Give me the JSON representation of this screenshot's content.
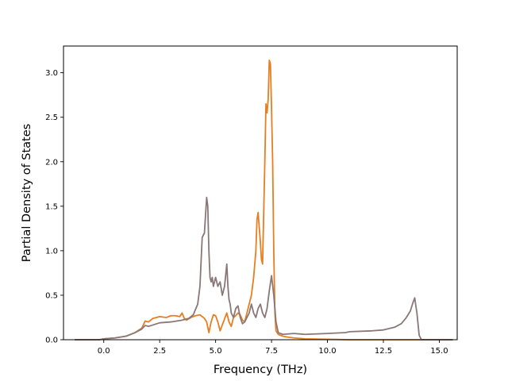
{
  "chart_data": {
    "type": "line",
    "xlabel": "Frequency (THz)",
    "ylabel": "Partial Density of States",
    "xlim": [
      -1.8,
      15.8
    ],
    "ylim": [
      0.0,
      3.3
    ],
    "xticks": [
      0.0,
      2.5,
      5.0,
      7.5,
      10.0,
      12.5,
      15.0
    ],
    "xtick_labels": [
      "0.0",
      "2.5",
      "5.0",
      "7.5",
      "10.0",
      "12.5",
      "15.0"
    ],
    "yticks": [
      0.0,
      0.5,
      1.0,
      1.5,
      2.0,
      2.5,
      3.0
    ],
    "ytick_labels": [
      "0.0",
      "0.5",
      "1.0",
      "1.5",
      "2.0",
      "2.5",
      "3.0"
    ],
    "grid": false,
    "series": [
      {
        "color": "#e67e22",
        "x": [
          -1.3,
          -0.2,
          0.0,
          0.5,
          1.0,
          1.4,
          1.7,
          1.85,
          2.0,
          2.2,
          2.5,
          2.8,
          3.0,
          3.2,
          3.4,
          3.5,
          3.6,
          3.7,
          3.9,
          4.1,
          4.3,
          4.5,
          4.6,
          4.7,
          4.8,
          4.9,
          5.0,
          5.1,
          5.2,
          5.35,
          5.5,
          5.6,
          5.7,
          5.8,
          5.9,
          6.0,
          6.1,
          6.2,
          6.3,
          6.4,
          6.5,
          6.6,
          6.7,
          6.8,
          6.85,
          6.9,
          7.0,
          7.05,
          7.1,
          7.2,
          7.25,
          7.3,
          7.35,
          7.4,
          7.45,
          7.5,
          7.55,
          7.6,
          7.65,
          7.7,
          7.8,
          7.9,
          8.0,
          8.2,
          8.5,
          9.0,
          10.0,
          11.0,
          12.0,
          13.0,
          14.0,
          15.0,
          15.6
        ],
        "y": [
          0.0,
          0.0,
          0.01,
          0.02,
          0.04,
          0.08,
          0.13,
          0.21,
          0.2,
          0.24,
          0.26,
          0.25,
          0.27,
          0.27,
          0.26,
          0.3,
          0.24,
          0.22,
          0.25,
          0.27,
          0.28,
          0.24,
          0.2,
          0.08,
          0.2,
          0.28,
          0.27,
          0.2,
          0.1,
          0.2,
          0.3,
          0.2,
          0.15,
          0.25,
          0.27,
          0.3,
          0.28,
          0.22,
          0.2,
          0.3,
          0.4,
          0.5,
          0.7,
          1.0,
          1.35,
          1.43,
          1.1,
          0.9,
          0.85,
          2.0,
          2.65,
          2.55,
          2.7,
          3.14,
          3.1,
          2.6,
          2.0,
          1.0,
          0.3,
          0.1,
          0.06,
          0.05,
          0.04,
          0.03,
          0.02,
          0.01,
          0.005,
          0.0,
          0.0,
          0.0,
          0.0,
          0.0,
          0.0
        ]
      },
      {
        "color": "#8a7878",
        "x": [
          -1.3,
          -0.2,
          0.0,
          0.5,
          1.0,
          1.4,
          1.7,
          1.85,
          2.0,
          2.5,
          3.0,
          3.5,
          3.8,
          4.0,
          4.2,
          4.3,
          4.4,
          4.5,
          4.6,
          4.65,
          4.7,
          4.75,
          4.8,
          4.85,
          4.9,
          5.0,
          5.1,
          5.2,
          5.3,
          5.4,
          5.5,
          5.55,
          5.6,
          5.65,
          5.7,
          5.8,
          5.9,
          6.0,
          6.1,
          6.2,
          6.3,
          6.4,
          6.5,
          6.6,
          6.7,
          6.8,
          6.9,
          7.0,
          7.1,
          7.2,
          7.3,
          7.4,
          7.5,
          7.6,
          7.7,
          7.8,
          8.0,
          8.5,
          9.0,
          10.0,
          10.8,
          11.0,
          12.0,
          12.5,
          13.0,
          13.3,
          13.5,
          13.7,
          13.8,
          13.9,
          14.0,
          14.1,
          14.2,
          15.0,
          15.6
        ],
        "y": [
          0.0,
          0.0,
          0.01,
          0.02,
          0.04,
          0.08,
          0.12,
          0.16,
          0.15,
          0.19,
          0.2,
          0.22,
          0.24,
          0.28,
          0.4,
          0.6,
          1.15,
          1.2,
          1.6,
          1.5,
          1.0,
          0.7,
          0.65,
          0.7,
          0.6,
          0.7,
          0.6,
          0.65,
          0.5,
          0.6,
          0.85,
          0.6,
          0.45,
          0.4,
          0.3,
          0.25,
          0.35,
          0.38,
          0.25,
          0.18,
          0.2,
          0.25,
          0.3,
          0.4,
          0.3,
          0.25,
          0.35,
          0.4,
          0.3,
          0.25,
          0.35,
          0.55,
          0.72,
          0.5,
          0.2,
          0.08,
          0.06,
          0.07,
          0.06,
          0.07,
          0.08,
          0.09,
          0.1,
          0.11,
          0.14,
          0.18,
          0.24,
          0.32,
          0.4,
          0.47,
          0.3,
          0.05,
          0.0,
          0.0,
          0.0
        ]
      }
    ]
  }
}
